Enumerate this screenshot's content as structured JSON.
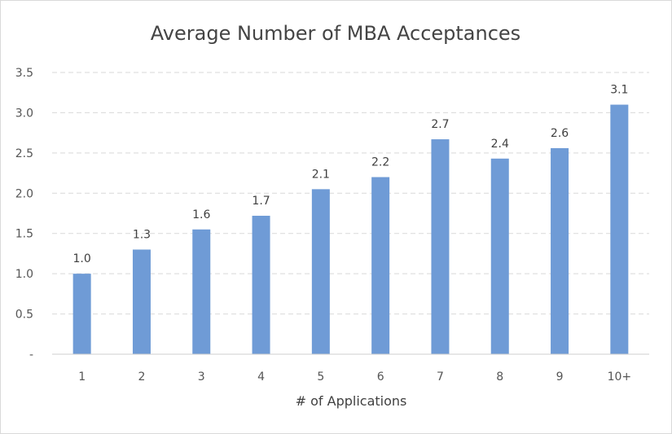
{
  "chart_data": {
    "type": "bar",
    "title": "Average Number of MBA Acceptances",
    "xlabel": "# of Applications",
    "ylabel": "",
    "categories": [
      "1",
      "2",
      "3",
      "4",
      "5",
      "6",
      "7",
      "8",
      "9",
      "10+"
    ],
    "values": [
      1.0,
      1.3,
      1.55,
      1.72,
      2.05,
      2.2,
      2.67,
      2.43,
      2.56,
      3.1
    ],
    "data_labels": [
      "1.0",
      "1.3",
      "1.6",
      "1.7",
      "2.1",
      "2.2",
      "2.7",
      "2.4",
      "2.6",
      "3.1"
    ],
    "ylim": [
      0,
      3.5
    ],
    "yticks": [
      0,
      0.5,
      1.0,
      1.5,
      2.0,
      2.5,
      3.0,
      3.5
    ],
    "ytick_labels": [
      "-",
      "0.5",
      "1.0",
      "1.5",
      "2.0",
      "2.5",
      "3.0",
      "3.5"
    ],
    "grid": true,
    "bar_color": "#6f9bd6"
  }
}
